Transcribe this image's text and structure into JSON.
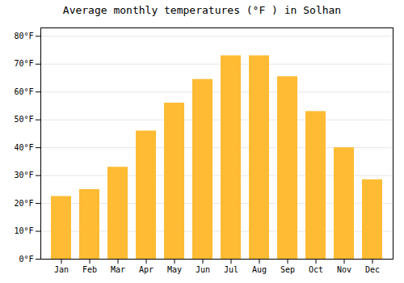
{
  "chart_data": {
    "type": "bar",
    "title": "Average monthly temperatures (°F ) in Solhan",
    "categories": [
      "Jan",
      "Feb",
      "Mar",
      "Apr",
      "May",
      "Jun",
      "Jul",
      "Aug",
      "Sep",
      "Oct",
      "Nov",
      "Dec"
    ],
    "values": [
      22.5,
      25,
      33,
      46,
      56,
      64.5,
      73,
      73,
      65.5,
      53,
      40,
      28.5
    ],
    "color": "#FFBB33",
    "ylim": [
      0,
      83
    ],
    "yticks": [
      {
        "value": 0,
        "label": "0°F"
      },
      {
        "value": 10,
        "label": "10°F"
      },
      {
        "value": 20,
        "label": "20°F"
      },
      {
        "value": 30,
        "label": "30°F"
      },
      {
        "value": 40,
        "label": "40°F"
      },
      {
        "value": 50,
        "label": "50°F"
      },
      {
        "value": 60,
        "label": "60°F"
      },
      {
        "value": 70,
        "label": "70°F"
      },
      {
        "value": 80,
        "label": "80°F"
      }
    ],
    "grid": true
  }
}
